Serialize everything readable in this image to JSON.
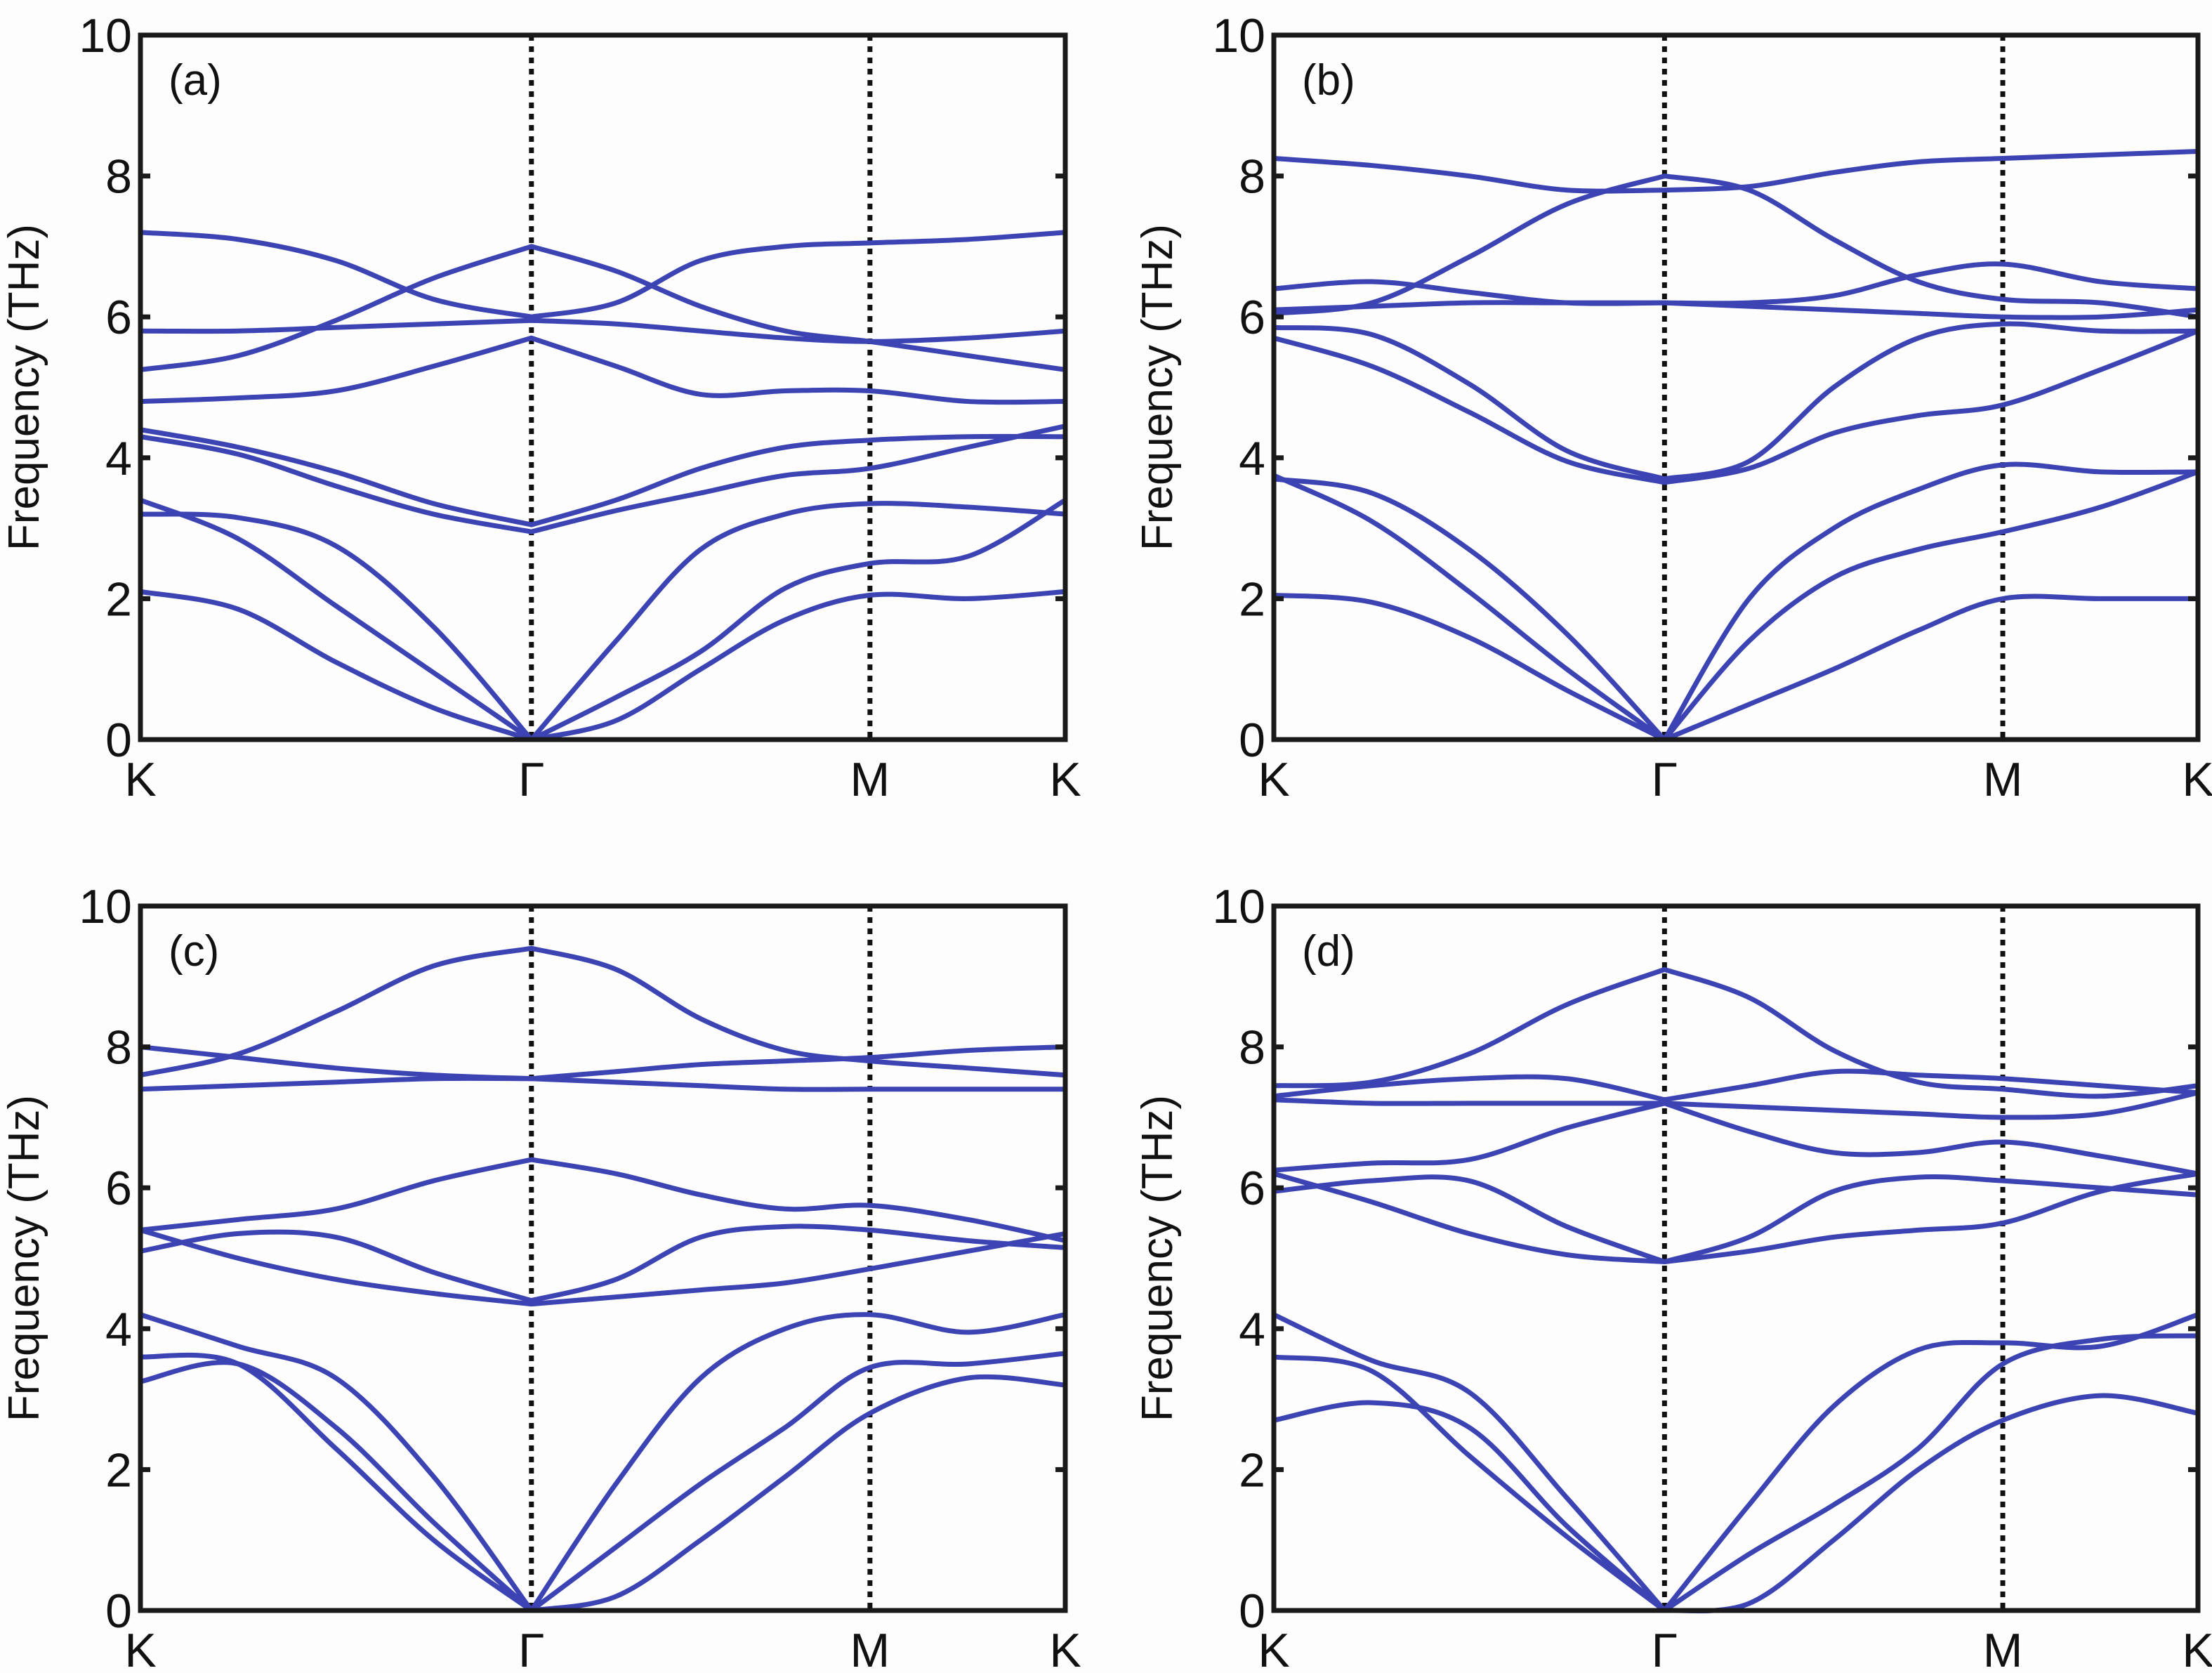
{
  "chart_data": [
    {
      "type": "line",
      "panel_label": "(a)",
      "ylabel": "Frequency (THz)",
      "ylim": [
        0,
        10
      ],
      "yticks": [
        0,
        2,
        4,
        6,
        8,
        10
      ],
      "xticks": [
        {
          "label": "K",
          "k": 0
        },
        {
          "label": "Γ",
          "k": 1.155
        },
        {
          "label": "M",
          "k": 2.155
        },
        {
          "label": "K",
          "k": 2.732
        }
      ],
      "k": [
        0,
        0.289,
        0.577,
        0.866,
        1.155,
        1.405,
        1.655,
        1.905,
        2.155,
        2.444,
        2.732
      ],
      "bands": [
        [
          2.1,
          1.85,
          1.1,
          0.45,
          0,
          0.27,
          1.0,
          1.7,
          2.05,
          2.0,
          2.1
        ],
        [
          3.4,
          2.85,
          1.9,
          0.95,
          0,
          0.6,
          1.25,
          2.15,
          2.5,
          2.6,
          3.4
        ],
        [
          3.2,
          3.15,
          2.75,
          1.6,
          0,
          1.4,
          2.7,
          3.2,
          3.35,
          3.3,
          3.2
        ],
        [
          4.4,
          4.15,
          3.8,
          3.35,
          3.05,
          3.4,
          3.85,
          4.15,
          4.25,
          4.3,
          4.3
        ],
        [
          4.3,
          4.05,
          3.6,
          3.2,
          2.95,
          3.25,
          3.5,
          3.75,
          3.85,
          4.15,
          4.45
        ],
        [
          4.8,
          4.85,
          4.95,
          5.3,
          5.7,
          5.3,
          4.9,
          4.95,
          4.95,
          4.8,
          4.8
        ],
        [
          5.8,
          5.8,
          5.85,
          5.9,
          5.95,
          5.9,
          5.8,
          5.7,
          5.65,
          5.7,
          5.8
        ],
        [
          5.25,
          5.45,
          5.95,
          6.55,
          7.0,
          6.65,
          6.15,
          5.8,
          5.65,
          5.45,
          5.25
        ],
        [
          7.2,
          7.1,
          6.8,
          6.25,
          6.0,
          6.2,
          6.8,
          7.0,
          7.05,
          7.1,
          7.2
        ]
      ]
    },
    {
      "type": "line",
      "panel_label": "(b)",
      "ylabel": "Frequency (THz)",
      "ylim": [
        0,
        10
      ],
      "yticks": [
        0,
        2,
        4,
        6,
        8,
        10
      ],
      "xticks": [
        {
          "label": "K",
          "k": 0
        },
        {
          "label": "Γ",
          "k": 1.155
        },
        {
          "label": "M",
          "k": 2.155
        },
        {
          "label": "K",
          "k": 2.732
        }
      ],
      "k": [
        0,
        0.289,
        0.577,
        0.866,
        1.155,
        1.405,
        1.655,
        1.905,
        2.155,
        2.444,
        2.732
      ],
      "bands": [
        [
          2.05,
          1.95,
          1.45,
          0.7,
          0,
          0.5,
          1.0,
          1.55,
          2.0,
          2.0,
          2.0
        ],
        [
          3.75,
          3.1,
          2.1,
          1.0,
          0,
          1.4,
          2.3,
          2.7,
          2.95,
          3.3,
          3.8
        ],
        [
          3.7,
          3.5,
          2.7,
          1.5,
          0,
          2.0,
          3.0,
          3.55,
          3.9,
          3.8,
          3.8
        ],
        [
          5.85,
          5.75,
          5.05,
          4.1,
          3.7,
          3.95,
          5.0,
          5.7,
          5.9,
          5.8,
          5.8
        ],
        [
          5.7,
          5.3,
          4.65,
          3.95,
          3.65,
          3.85,
          4.35,
          4.6,
          4.75,
          5.25,
          5.8
        ],
        [
          6.1,
          6.15,
          6.2,
          6.2,
          6.2,
          6.15,
          6.1,
          6.05,
          6.0,
          6.0,
          6.1
        ],
        [
          6.4,
          6.5,
          6.35,
          6.2,
          6.2,
          6.2,
          6.3,
          6.6,
          6.75,
          6.5,
          6.4
        ],
        [
          6.05,
          6.2,
          6.85,
          7.6,
          8.0,
          7.8,
          7.1,
          6.5,
          6.25,
          6.2,
          6.0
        ],
        [
          8.25,
          8.15,
          8.0,
          7.8,
          7.8,
          7.85,
          8.05,
          8.2,
          8.25,
          8.3,
          8.35
        ]
      ]
    },
    {
      "type": "line",
      "panel_label": "(c)",
      "ylabel": "Frequency (THz)",
      "ylim": [
        0,
        10
      ],
      "yticks": [
        0,
        2,
        4,
        6,
        8,
        10
      ],
      "xticks": [
        {
          "label": "K",
          "k": 0
        },
        {
          "label": "Γ",
          "k": 1.155
        },
        {
          "label": "M",
          "k": 2.155
        },
        {
          "label": "K",
          "k": 2.732
        }
      ],
      "k": [
        0,
        0.289,
        0.577,
        0.866,
        1.155,
        1.405,
        1.655,
        1.905,
        2.155,
        2.444,
        2.732
      ],
      "bands": [
        [
          3.25,
          3.5,
          2.6,
          1.25,
          0,
          0.2,
          1.0,
          1.9,
          2.8,
          3.3,
          3.2
        ],
        [
          3.6,
          3.5,
          2.3,
          1.0,
          0,
          0.9,
          1.8,
          2.6,
          3.45,
          3.5,
          3.65
        ],
        [
          4.2,
          3.75,
          3.3,
          1.9,
          0,
          1.8,
          3.3,
          4.0,
          4.2,
          3.95,
          4.2
        ],
        [
          5.1,
          5.35,
          5.3,
          4.8,
          4.4,
          4.7,
          5.3,
          5.45,
          5.4,
          5.25,
          5.15
        ],
        [
          5.4,
          5.0,
          4.7,
          4.5,
          4.35,
          4.45,
          4.55,
          4.65,
          4.85,
          5.1,
          5.35
        ],
        [
          5.4,
          5.55,
          5.7,
          6.1,
          6.4,
          6.2,
          5.9,
          5.7,
          5.75,
          5.55,
          5.25
        ],
        [
          7.4,
          7.45,
          7.5,
          7.55,
          7.55,
          7.5,
          7.45,
          7.4,
          7.4,
          7.4,
          7.4
        ],
        [
          8.0,
          7.85,
          7.7,
          7.6,
          7.55,
          7.65,
          7.75,
          7.8,
          7.85,
          7.95,
          8.0
        ],
        [
          7.6,
          7.9,
          8.5,
          9.15,
          9.4,
          9.1,
          8.4,
          7.95,
          7.8,
          7.7,
          7.6
        ]
      ]
    },
    {
      "type": "line",
      "panel_label": "(d)",
      "ylabel": "Frequency (THz)",
      "ylim": [
        0,
        10
      ],
      "yticks": [
        0,
        2,
        4,
        6,
        8,
        10
      ],
      "xticks": [
        {
          "label": "K",
          "k": 0
        },
        {
          "label": "Γ",
          "k": 1.155
        },
        {
          "label": "M",
          "k": 2.155
        },
        {
          "label": "K",
          "k": 2.732
        }
      ],
      "k": [
        0,
        0.289,
        0.577,
        0.866,
        1.155,
        1.405,
        1.655,
        1.905,
        2.155,
        2.444,
        2.732
      ],
      "bands": [
        [
          2.7,
          2.95,
          2.6,
          1.2,
          0,
          0.1,
          1.0,
          2.0,
          2.7,
          3.05,
          2.8
        ],
        [
          3.6,
          3.4,
          2.2,
          1.05,
          0,
          0.8,
          1.5,
          2.3,
          3.5,
          3.85,
          3.9
        ],
        [
          4.2,
          3.55,
          3.1,
          1.6,
          0,
          1.5,
          2.9,
          3.7,
          3.8,
          3.75,
          4.2
        ],
        [
          6.2,
          5.8,
          5.35,
          5.05,
          4.95,
          5.1,
          5.3,
          5.4,
          5.5,
          5.95,
          6.2
        ],
        [
          5.95,
          6.1,
          6.1,
          5.45,
          4.95,
          5.3,
          5.95,
          6.15,
          6.1,
          6.0,
          5.9
        ],
        [
          6.25,
          6.35,
          6.4,
          6.85,
          7.2,
          6.8,
          6.5,
          6.5,
          6.65,
          6.45,
          6.2
        ],
        [
          7.25,
          7.2,
          7.2,
          7.2,
          7.2,
          7.15,
          7.1,
          7.05,
          7.0,
          7.05,
          7.35
        ],
        [
          7.3,
          7.45,
          7.55,
          7.55,
          7.25,
          7.45,
          7.65,
          7.6,
          7.55,
          7.45,
          7.35
        ],
        [
          7.45,
          7.5,
          7.9,
          8.6,
          9.1,
          8.7,
          7.95,
          7.5,
          7.4,
          7.3,
          7.45
        ]
      ]
    }
  ],
  "colors": {
    "band": "#3c44b4",
    "frame": "#1a1a1a",
    "symmetry_line": "#111111"
  }
}
